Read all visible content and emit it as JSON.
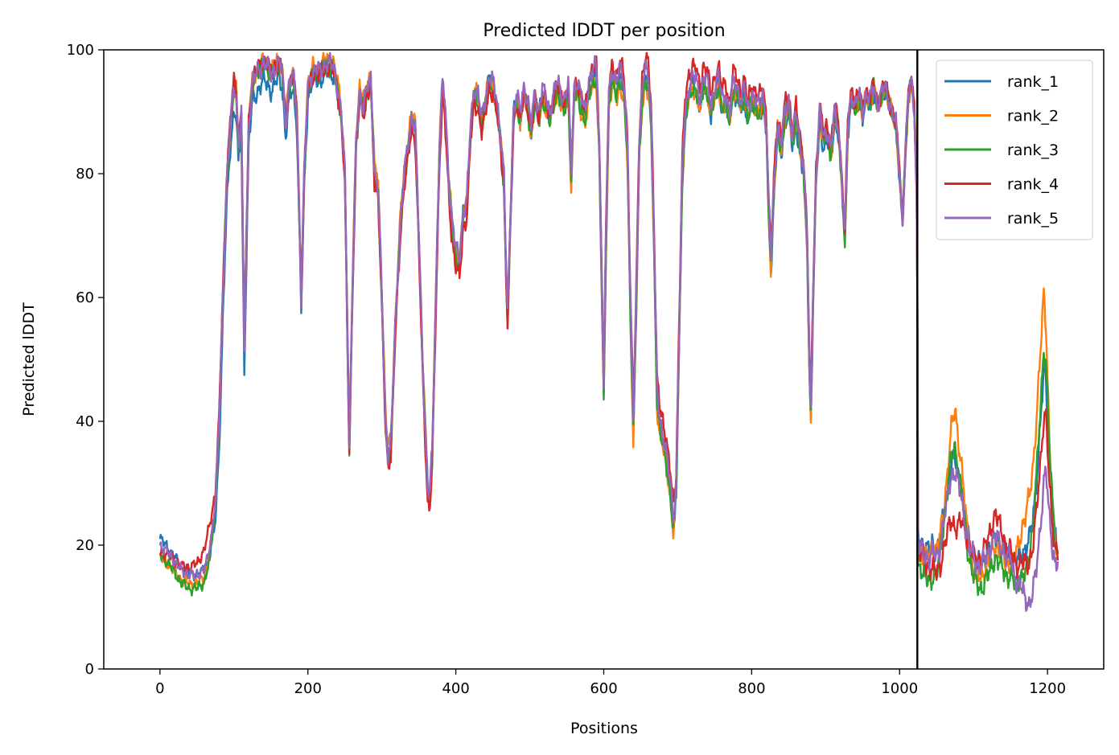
{
  "chart_data": {
    "type": "line",
    "title": "Predicted lDDT per position",
    "xlabel": "Positions",
    "ylabel": "Predicted lDDT",
    "xlim": [
      -76,
      1276
    ],
    "ylim": [
      0,
      100
    ],
    "xticks": [
      0,
      200,
      400,
      600,
      800,
      1000,
      1200
    ],
    "yticks": [
      0,
      20,
      40,
      60,
      80,
      100
    ],
    "grid": false,
    "legend_position": "top-right",
    "vertical_lines": [
      1024
    ],
    "base_profile": [
      [
        0,
        19.5
      ],
      [
        10,
        18.5
      ],
      [
        20,
        17
      ],
      [
        30,
        15.5
      ],
      [
        40,
        15
      ],
      [
        50,
        15
      ],
      [
        60,
        16
      ],
      [
        65,
        18
      ],
      [
        70,
        22
      ],
      [
        75,
        27
      ],
      [
        80,
        40
      ],
      [
        85,
        60
      ],
      [
        90,
        78
      ],
      [
        95,
        88
      ],
      [
        100,
        94
      ],
      [
        103,
        93
      ],
      [
        106,
        85
      ],
      [
        110,
        90
      ],
      [
        112,
        70
      ],
      [
        114,
        52
      ],
      [
        117,
        70
      ],
      [
        120,
        88
      ],
      [
        125,
        95
      ],
      [
        130,
        96
      ],
      [
        135,
        97
      ],
      [
        140,
        98
      ],
      [
        145,
        97.5
      ],
      [
        150,
        96
      ],
      [
        155,
        97
      ],
      [
        160,
        98
      ],
      [
        165,
        97
      ],
      [
        170,
        88
      ],
      [
        175,
        95
      ],
      [
        180,
        96
      ],
      [
        185,
        90
      ],
      [
        188,
        75
      ],
      [
        191,
        60
      ],
      [
        195,
        80
      ],
      [
        200,
        94
      ],
      [
        205,
        96
      ],
      [
        210,
        97
      ],
      [
        215,
        96.5
      ],
      [
        220,
        97
      ],
      [
        225,
        98
      ],
      [
        230,
        98
      ],
      [
        235,
        97
      ],
      [
        240,
        94
      ],
      [
        245,
        90
      ],
      [
        250,
        80
      ],
      [
        254,
        50
      ],
      [
        256,
        36
      ],
      [
        260,
        60
      ],
      [
        265,
        85
      ],
      [
        270,
        93
      ],
      [
        275,
        91
      ],
      [
        280,
        94
      ],
      [
        285,
        95
      ],
      [
        290,
        80
      ],
      [
        295,
        78
      ],
      [
        300,
        60
      ],
      [
        305,
        40
      ],
      [
        308,
        35
      ],
      [
        312,
        36
      ],
      [
        318,
        55
      ],
      [
        325,
        72
      ],
      [
        330,
        80
      ],
      [
        335,
        84
      ],
      [
        340,
        89
      ],
      [
        345,
        88
      ],
      [
        350,
        70
      ],
      [
        355,
        50
      ],
      [
        360,
        35
      ],
      [
        362,
        29
      ],
      [
        365,
        29
      ],
      [
        368,
        35
      ],
      [
        372,
        55
      ],
      [
        378,
        85
      ],
      [
        382,
        95
      ],
      [
        385,
        92
      ],
      [
        390,
        80
      ],
      [
        395,
        72
      ],
      [
        400,
        68
      ],
      [
        405,
        66
      ],
      [
        410,
        74
      ],
      [
        415,
        76
      ],
      [
        420,
        88
      ],
      [
        425,
        94
      ],
      [
        430,
        93
      ],
      [
        435,
        89
      ],
      [
        440,
        92
      ],
      [
        445,
        96
      ],
      [
        450,
        95
      ],
      [
        455,
        92
      ],
      [
        460,
        87
      ],
      [
        465,
        80
      ],
      [
        468,
        65
      ],
      [
        470,
        57
      ],
      [
        473,
        70
      ],
      [
        478,
        90
      ],
      [
        482,
        93
      ],
      [
        487,
        90
      ],
      [
        492,
        94
      ],
      [
        497,
        92
      ],
      [
        502,
        88
      ],
      [
        507,
        93
      ],
      [
        512,
        90
      ],
      [
        517,
        94
      ],
      [
        522,
        92
      ],
      [
        527,
        90
      ],
      [
        532,
        93
      ],
      [
        537,
        95
      ],
      [
        542,
        93
      ],
      [
        547,
        92
      ],
      [
        552,
        95
      ],
      [
        556,
        80
      ],
      [
        560,
        94
      ],
      [
        565,
        95
      ],
      [
        570,
        92
      ],
      [
        575,
        90
      ],
      [
        580,
        95
      ],
      [
        585,
        97
      ],
      [
        590,
        97
      ],
      [
        594,
        85
      ],
      [
        597,
        65
      ],
      [
        600,
        46
      ],
      [
        603,
        70
      ],
      [
        607,
        93
      ],
      [
        612,
        97
      ],
      [
        617,
        95
      ],
      [
        622,
        97
      ],
      [
        627,
        95
      ],
      [
        632,
        85
      ],
      [
        636,
        60
      ],
      [
        640,
        40
      ],
      [
        644,
        60
      ],
      [
        648,
        85
      ],
      [
        652,
        94
      ],
      [
        656,
        97
      ],
      [
        660,
        96
      ],
      [
        664,
        90
      ],
      [
        668,
        70
      ],
      [
        672,
        45
      ],
      [
        676,
        40
      ],
      [
        680,
        38
      ],
      [
        685,
        35
      ],
      [
        690,
        30
      ],
      [
        694,
        24
      ],
      [
        698,
        30
      ],
      [
        702,
        55
      ],
      [
        706,
        80
      ],
      [
        710,
        90
      ],
      [
        715,
        94
      ],
      [
        720,
        96
      ],
      [
        725,
        95
      ],
      [
        730,
        92
      ],
      [
        735,
        96
      ],
      [
        740,
        95
      ],
      [
        745,
        91
      ],
      [
        750,
        94
      ],
      [
        755,
        96
      ],
      [
        760,
        92
      ],
      [
        765,
        93
      ],
      [
        770,
        90
      ],
      [
        775,
        95
      ],
      [
        780,
        94
      ],
      [
        785,
        92
      ],
      [
        790,
        94
      ],
      [
        795,
        90
      ],
      [
        800,
        93
      ],
      [
        805,
        92
      ],
      [
        810,
        91
      ],
      [
        815,
        93
      ],
      [
        820,
        88
      ],
      [
        823,
        75
      ],
      [
        826,
        66
      ],
      [
        830,
        78
      ],
      [
        835,
        88
      ],
      [
        840,
        85
      ],
      [
        845,
        90
      ],
      [
        850,
        92
      ],
      [
        855,
        86
      ],
      [
        860,
        90
      ],
      [
        865,
        85
      ],
      [
        870,
        82
      ],
      [
        875,
        70
      ],
      [
        878,
        50
      ],
      [
        880,
        42
      ],
      [
        883,
        60
      ],
      [
        887,
        80
      ],
      [
        892,
        90
      ],
      [
        897,
        86
      ],
      [
        902,
        87
      ],
      [
        907,
        84
      ],
      [
        912,
        90
      ],
      [
        917,
        88
      ],
      [
        922,
        79
      ],
      [
        926,
        70
      ],
      [
        930,
        88
      ],
      [
        935,
        93
      ],
      [
        940,
        91
      ],
      [
        945,
        93
      ],
      [
        950,
        90
      ],
      [
        955,
        93
      ],
      [
        960,
        92
      ],
      [
        965,
        94
      ],
      [
        970,
        91
      ],
      [
        975,
        93
      ],
      [
        980,
        94
      ],
      [
        985,
        92
      ],
      [
        990,
        90
      ],
      [
        995,
        88
      ],
      [
        1000,
        80
      ],
      [
        1004,
        72
      ],
      [
        1008,
        84
      ],
      [
        1012,
        93
      ],
      [
        1016,
        95
      ],
      [
        1020,
        90
      ],
      [
        1023,
        78
      ],
      [
        1024,
        60
      ],
      [
        1025,
        20
      ],
      [
        1030,
        19
      ],
      [
        1035,
        18
      ],
      [
        1040,
        18
      ],
      [
        1045,
        19
      ],
      [
        1050,
        18
      ],
      [
        1055,
        20
      ],
      [
        1060,
        24
      ],
      [
        1065,
        28
      ],
      [
        1070,
        32
      ],
      [
        1075,
        33
      ],
      [
        1080,
        30
      ],
      [
        1085,
        27
      ],
      [
        1090,
        22
      ],
      [
        1095,
        19
      ],
      [
        1100,
        17
      ],
      [
        1105,
        16
      ],
      [
        1110,
        16
      ],
      [
        1115,
        17
      ],
      [
        1120,
        18
      ],
      [
        1125,
        20
      ],
      [
        1130,
        21
      ],
      [
        1135,
        20
      ],
      [
        1140,
        19
      ],
      [
        1145,
        18
      ],
      [
        1150,
        18
      ],
      [
        1155,
        17
      ],
      [
        1160,
        17
      ],
      [
        1165,
        18
      ],
      [
        1170,
        18
      ],
      [
        1175,
        19
      ],
      [
        1180,
        22
      ],
      [
        1185,
        28
      ],
      [
        1190,
        36
      ],
      [
        1195,
        45
      ],
      [
        1198,
        44
      ],
      [
        1202,
        33
      ],
      [
        1206,
        25
      ],
      [
        1210,
        20
      ],
      [
        1214,
        18
      ]
    ],
    "series": [
      {
        "name": "rank_1",
        "color": "#1f77b4",
        "offsets": [
          [
            0,
            1.5
          ],
          [
            60,
            0
          ],
          [
            80,
            -4
          ],
          [
            300,
            0
          ],
          [
            880,
            -2
          ],
          [
            1024,
            0
          ],
          [
            1025,
            1.5
          ],
          [
            1060,
            1
          ],
          [
            1075,
            1
          ],
          [
            1100,
            1
          ],
          [
            1150,
            0
          ],
          [
            1195,
            3
          ],
          [
            1214,
            1
          ]
        ]
      },
      {
        "name": "rank_2",
        "color": "#ff7f0e",
        "offsets": [
          [
            0,
            -1.5
          ],
          [
            60,
            -1
          ],
          [
            80,
            0
          ],
          [
            300,
            1
          ],
          [
            640,
            -3
          ],
          [
            694,
            -2
          ],
          [
            1024,
            0
          ],
          [
            1025,
            -1
          ],
          [
            1060,
            2
          ],
          [
            1075,
            9
          ],
          [
            1090,
            2
          ],
          [
            1100,
            -1
          ],
          [
            1150,
            -1
          ],
          [
            1195,
            16
          ],
          [
            1205,
            2
          ],
          [
            1214,
            0
          ]
        ]
      },
      {
        "name": "rank_3",
        "color": "#2ca02c",
        "offsets": [
          [
            0,
            -1
          ],
          [
            40,
            -2
          ],
          [
            60,
            -2
          ],
          [
            80,
            0
          ],
          [
            600,
            -2
          ],
          [
            694,
            -2
          ],
          [
            1024,
            0
          ],
          [
            1025,
            -3
          ],
          [
            1045,
            -4
          ],
          [
            1060,
            0
          ],
          [
            1075,
            3
          ],
          [
            1090,
            -1
          ],
          [
            1110,
            -3
          ],
          [
            1150,
            -3
          ],
          [
            1170,
            -3
          ],
          [
            1195,
            7
          ],
          [
            1214,
            0
          ]
        ]
      },
      {
        "name": "rank_4",
        "color": "#d62728",
        "offsets": [
          [
            0,
            -0.5
          ],
          [
            50,
            2
          ],
          [
            65,
            4
          ],
          [
            80,
            1
          ],
          [
            340,
            -2
          ],
          [
            400,
            -3
          ],
          [
            680,
            2
          ],
          [
            1024,
            0
          ],
          [
            1025,
            0
          ],
          [
            1060,
            -4
          ],
          [
            1075,
            -10
          ],
          [
            1090,
            0
          ],
          [
            1130,
            4
          ],
          [
            1150,
            1
          ],
          [
            1195,
            -4
          ],
          [
            1214,
            1
          ]
        ]
      },
      {
        "name": "rank_5",
        "color": "#9467bd",
        "offsets": [
          [
            0,
            0.5
          ],
          [
            80,
            0
          ],
          [
            1024,
            0
          ],
          [
            1025,
            0
          ],
          [
            1060,
            0
          ],
          [
            1075,
            -1
          ],
          [
            1100,
            1
          ],
          [
            1150,
            0
          ],
          [
            1195,
            -15
          ],
          [
            1205,
            -5
          ],
          [
            1214,
            -1
          ]
        ]
      }
    ]
  }
}
